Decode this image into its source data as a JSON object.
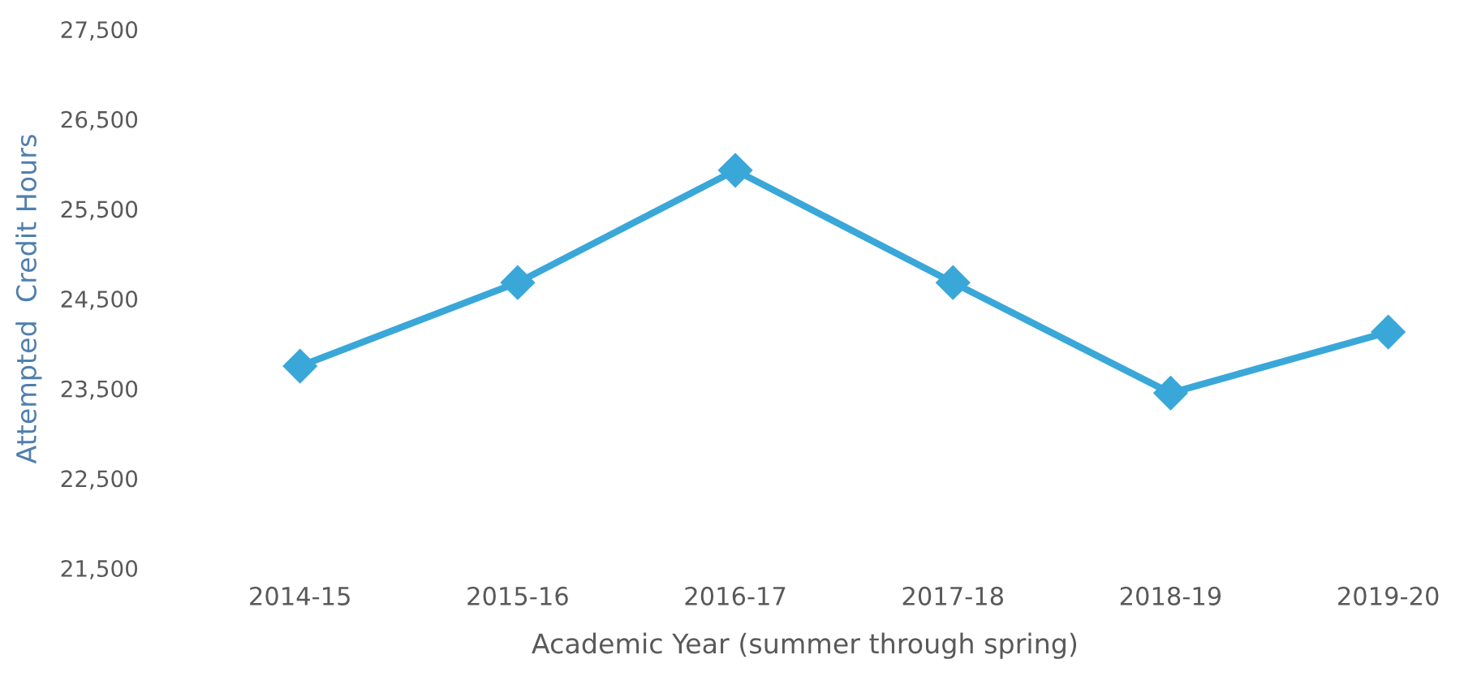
{
  "chart_data": {
    "type": "line",
    "xlabel": "Academic Year (summer through spring)",
    "ylabel": "Attempted  Credit Hours",
    "categories": [
      "2014-15",
      "2015-16",
      "2016-17",
      "2017-18",
      "2018-19",
      "2019-20"
    ],
    "series": [
      {
        "color": "#3aa7d9",
        "values": [
          23750,
          24680,
          25930,
          24680,
          23450,
          24130
        ]
      }
    ],
    "ylim": [
      21500,
      27500
    ],
    "yticks": [
      {
        "value": 21500,
        "label": "21,500"
      },
      {
        "value": 22500,
        "label": "22,500"
      },
      {
        "value": 23500,
        "label": "23,500"
      },
      {
        "value": 24500,
        "label": "24,500"
      },
      {
        "value": 25500,
        "label": "25,500"
      },
      {
        "value": 26500,
        "label": "26,500"
      },
      {
        "value": 27500,
        "label": "27,500"
      }
    ],
    "grid": false,
    "legend": false,
    "marker": "diamond",
    "line_style": "solid"
  }
}
